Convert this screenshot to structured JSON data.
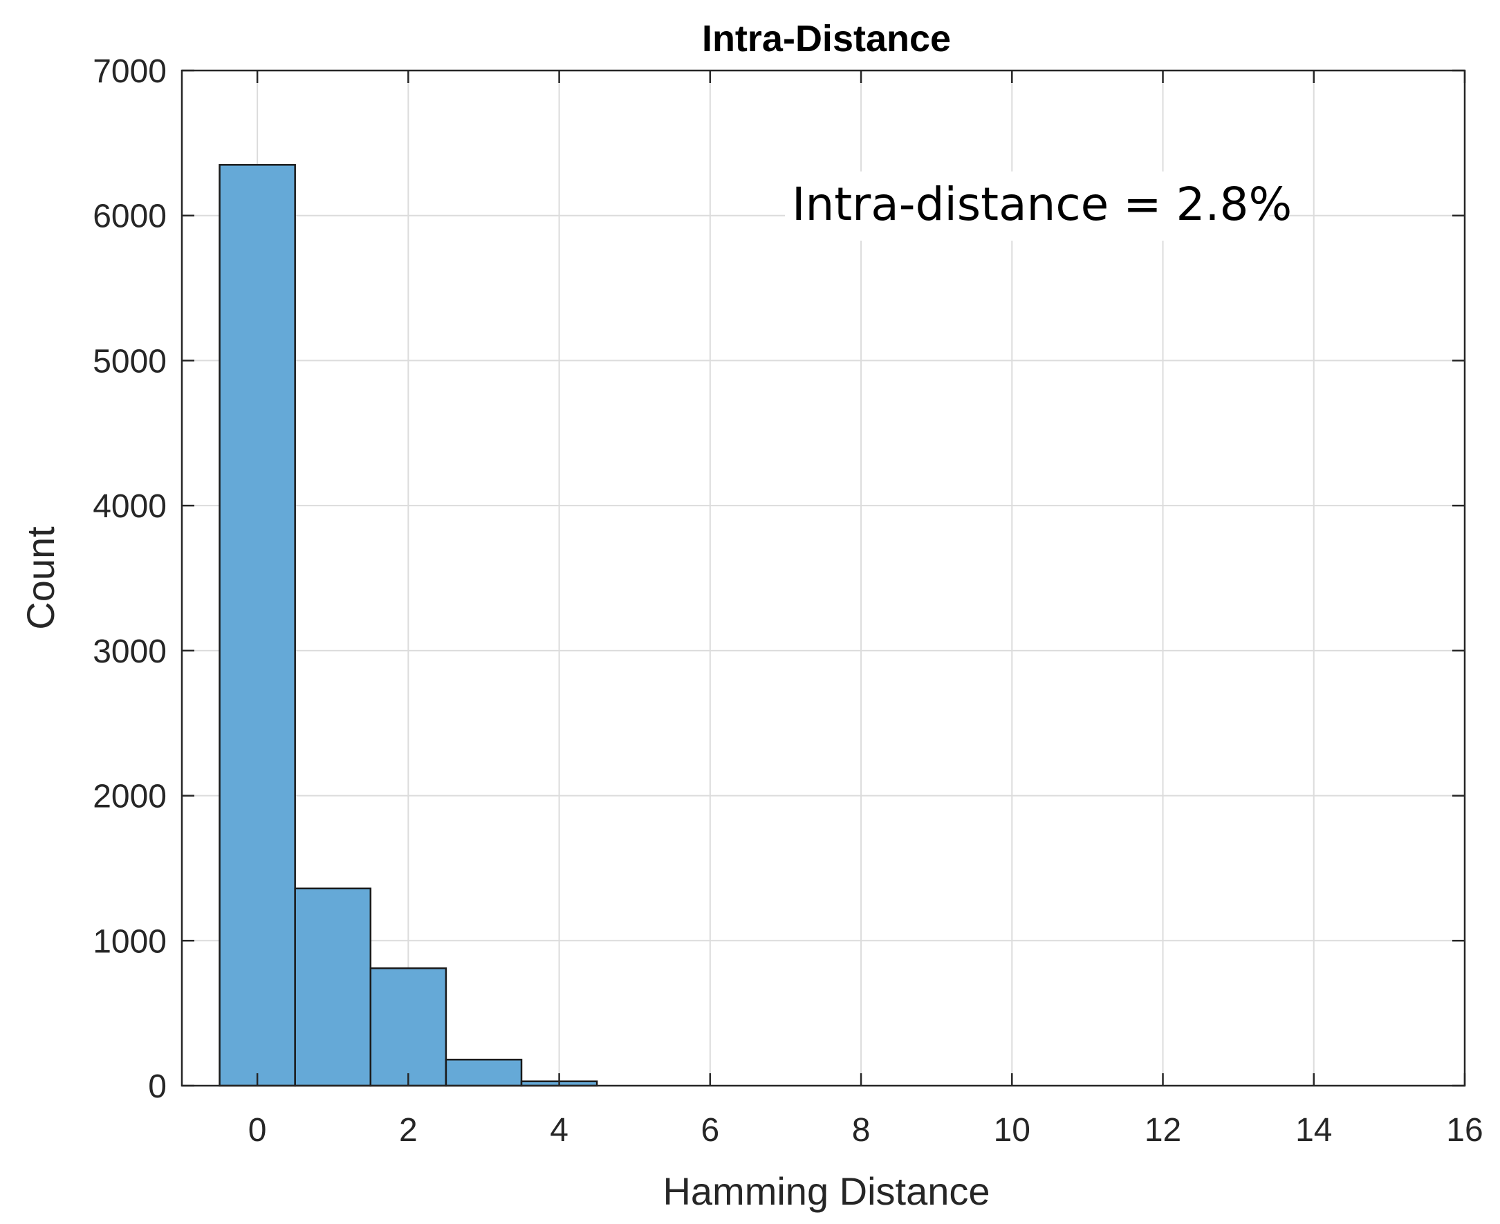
{
  "colors": {
    "bar_fill": "#65a9d7",
    "bar_stroke": "#1a1a1a",
    "grid": "#dcdcdc",
    "axis": "#262626"
  },
  "chart_data": {
    "type": "bar",
    "title": "Intra-Distance",
    "xlabel": "Hamming Distance",
    "ylabel": "Count",
    "annotation": "Intra-distance = 2.8%",
    "xlim": [
      -1,
      16
    ],
    "ylim": [
      0,
      7000
    ],
    "xticks": [
      0,
      2,
      4,
      6,
      8,
      10,
      12,
      14,
      16
    ],
    "yticks": [
      0,
      1000,
      2000,
      3000,
      4000,
      5000,
      6000,
      7000
    ],
    "bin_width": 1,
    "categories": [
      0,
      1,
      2,
      3,
      4
    ],
    "values": [
      6350,
      1360,
      810,
      180,
      30
    ],
    "grid": true,
    "legend": "none"
  }
}
